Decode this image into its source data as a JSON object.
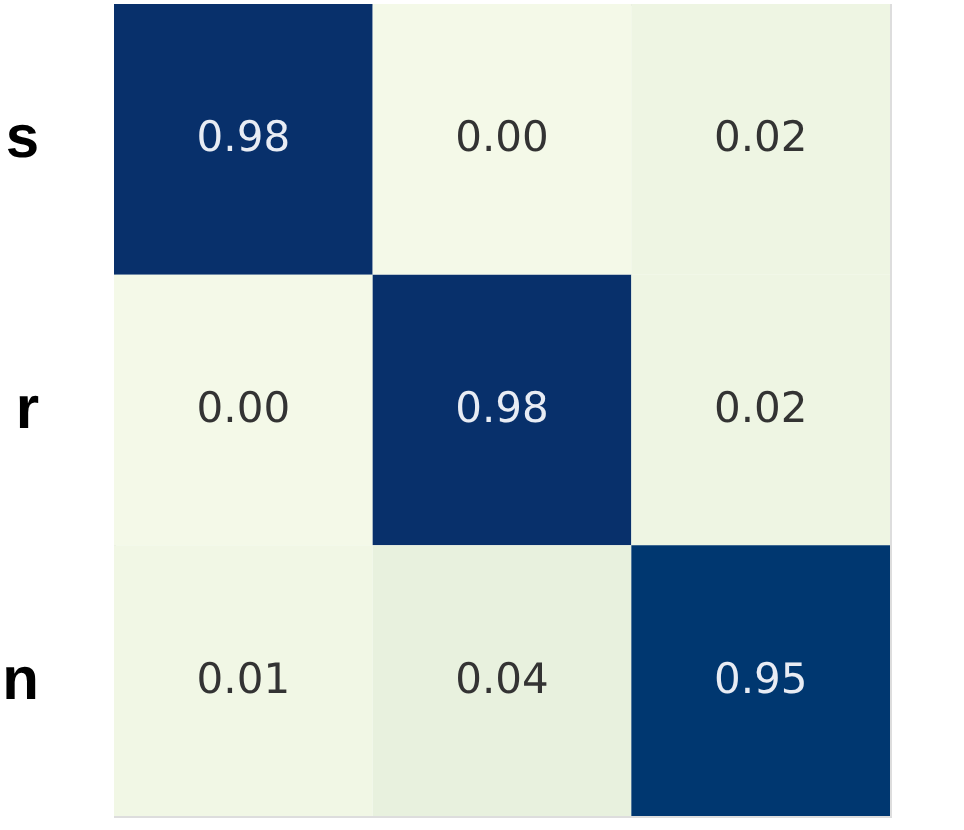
{
  "chart_data": {
    "type": "heatmap",
    "categories": [
      null,
      null,
      null
    ],
    "y_categories": [
      "s",
      "r",
      "n"
    ],
    "cells": [
      [
        0.98,
        0.0,
        0.02
      ],
      [
        0.0,
        0.98,
        0.02
      ],
      [
        0.01,
        0.04,
        0.95
      ]
    ],
    "cell_labels": [
      [
        "0.98",
        "0.00",
        "0.02"
      ],
      [
        "0.00",
        "0.98",
        "0.02"
      ],
      [
        "0.01",
        "0.04",
        "0.95"
      ]
    ],
    "tick_labels": "y"
  }
}
